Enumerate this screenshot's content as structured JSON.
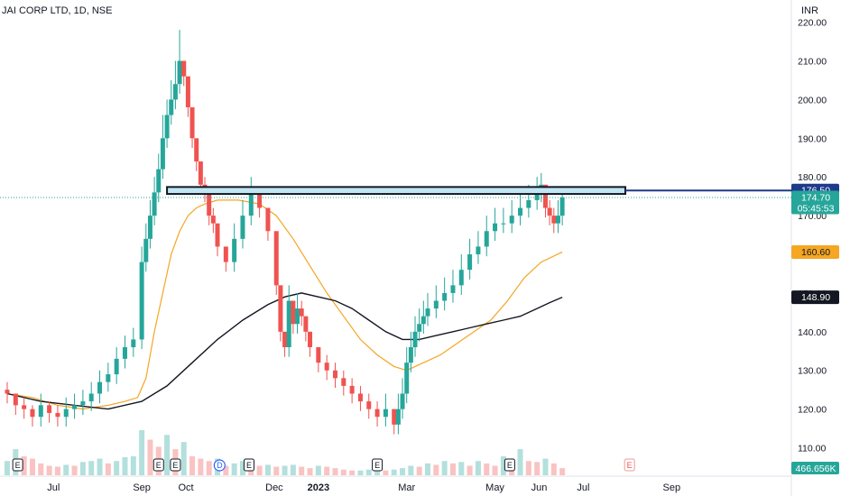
{
  "header": {
    "title": "JAI CORP LTD, 1D, NSE",
    "currency": "INR"
  },
  "chart_data": {
    "type": "candlestick",
    "symbol": "JAI CORP LTD",
    "interval": "1D",
    "exchange": "NSE",
    "ylim": [
      105,
      222
    ],
    "yticks": [
      110,
      120,
      130,
      140,
      150,
      160,
      170,
      180,
      190,
      200,
      210,
      220
    ],
    "ytick_labels": [
      "110.00",
      "120.00",
      "130.00",
      "140.00",
      "150.00",
      "160.00",
      "170.00",
      "180.00",
      "190.00",
      "200.00",
      "210.00",
      "220.00"
    ],
    "xticks": [
      {
        "label": "Jul",
        "t": 22,
        "bold": false
      },
      {
        "label": "Sep",
        "t": 64,
        "bold": false
      },
      {
        "label": "Oct",
        "t": 85,
        "bold": false
      },
      {
        "label": "Dec",
        "t": 127,
        "bold": false
      },
      {
        "label": "2023",
        "t": 148,
        "bold": true
      },
      {
        "label": "Mar",
        "t": 190,
        "bold": false
      },
      {
        "label": "May",
        "t": 232,
        "bold": false
      },
      {
        "label": "Jun",
        "t": 253,
        "bold": false
      },
      {
        "label": "Jul",
        "t": 274,
        "bold": false
      },
      {
        "label": "Sep",
        "t": 316,
        "bold": false
      }
    ],
    "series": [
      {
        "name": "Price",
        "kind": "candle",
        "t": [
          0,
          4,
          8,
          12,
          16,
          20,
          24,
          28,
          32,
          36,
          40,
          44,
          48,
          52,
          56,
          60,
          64,
          66,
          68,
          70,
          72,
          74,
          76,
          78,
          80,
          82,
          84,
          86,
          88,
          90,
          92,
          94,
          96,
          98,
          100,
          104,
          108,
          112,
          116,
          120,
          124,
          128,
          130,
          132,
          134,
          136,
          138,
          140,
          142,
          144,
          148,
          152,
          156,
          160,
          164,
          168,
          172,
          176,
          180,
          184,
          186,
          188,
          190,
          192,
          194,
          196,
          198,
          200,
          204,
          208,
          212,
          216,
          220,
          224,
          228,
          232,
          236,
          240,
          244,
          248,
          252,
          254,
          256,
          258,
          260,
          262,
          264
        ],
        "close": [
          124,
          121,
          120,
          118,
          121,
          119,
          118,
          120,
          121,
          122,
          124,
          127,
          129,
          133,
          136,
          138,
          158,
          164,
          170,
          176,
          182,
          190,
          196,
          200,
          204,
          210,
          206,
          198,
          190,
          184,
          178,
          176,
          170,
          168,
          162,
          158,
          164,
          170,
          176,
          172,
          166,
          152,
          140,
          136,
          148,
          142,
          146,
          144,
          140,
          136,
          132,
          130,
          128,
          126,
          124,
          122,
          120,
          118,
          120,
          116,
          120,
          124,
          132,
          136,
          140,
          142,
          144,
          146,
          148,
          150,
          152,
          156,
          160,
          162,
          166,
          168,
          168,
          170,
          172,
          174,
          176,
          178,
          172,
          170,
          168,
          170,
          174.7
        ],
        "high": [
          127,
          124,
          123,
          121,
          124,
          122,
          121,
          123,
          124,
          125,
          127,
          130,
          132,
          136,
          139,
          141,
          162,
          168,
          174,
          180,
          186,
          196,
          200,
          205,
          210,
          218,
          210,
          202,
          194,
          188,
          182,
          180,
          175,
          172,
          166,
          162,
          168,
          174,
          180,
          176,
          170,
          160,
          148,
          140,
          152,
          146,
          150,
          148,
          144,
          140,
          136,
          134,
          132,
          130,
          128,
          126,
          124,
          122,
          124,
          120,
          124,
          128,
          136,
          140,
          144,
          146,
          148,
          150,
          152,
          154,
          156,
          160,
          164,
          166,
          170,
          172,
          172,
          174,
          176,
          178,
          180,
          181,
          176,
          174,
          172,
          174,
          176
        ]
      },
      {
        "name": "Moving average (short)",
        "kind": "line",
        "color": "#f5a623",
        "t": [
          0,
          12,
          24,
          36,
          48,
          56,
          62,
          66,
          70,
          74,
          78,
          82,
          86,
          90,
          94,
          100,
          110,
          120,
          128,
          136,
          144,
          152,
          160,
          168,
          176,
          184,
          190,
          198,
          206,
          214,
          222,
          230,
          238,
          246,
          254,
          264
        ],
        "y": [
          124,
          123,
          121,
          120,
          121,
          122,
          123,
          128,
          140,
          150,
          160,
          166,
          170,
          172,
          173,
          174,
          174,
          173,
          170,
          164,
          157,
          150,
          144,
          138,
          134,
          131,
          130,
          132,
          134,
          137,
          140,
          143,
          148,
          154,
          158,
          160.6
        ]
      },
      {
        "name": "Moving average (long)",
        "kind": "line",
        "color": "#131722",
        "t": [
          0,
          16,
          32,
          48,
          64,
          76,
          88,
          100,
          112,
          124,
          132,
          140,
          148,
          156,
          164,
          172,
          180,
          188,
          196,
          204,
          212,
          220,
          228,
          236,
          244,
          252,
          258,
          264
        ],
        "y": [
          124,
          122,
          121,
          120,
          122,
          126,
          132,
          138,
          143,
          147,
          149,
          150,
          149,
          148,
          146,
          143,
          140,
          138,
          138,
          139,
          140,
          141,
          142,
          143,
          144,
          146,
          147.5,
          148.9
        ]
      }
    ],
    "volume": {
      "label": "466.656K",
      "t": [
        0,
        4,
        8,
        12,
        16,
        20,
        24,
        28,
        32,
        36,
        40,
        44,
        48,
        52,
        56,
        60,
        64,
        68,
        72,
        76,
        80,
        84,
        88,
        92,
        96,
        100,
        104,
        108,
        112,
        116,
        120,
        124,
        128,
        132,
        136,
        140,
        144,
        148,
        152,
        156,
        160,
        164,
        168,
        172,
        176,
        180,
        184,
        188,
        192,
        196,
        200,
        204,
        208,
        212,
        216,
        220,
        224,
        228,
        232,
        236,
        240,
        244,
        248,
        252,
        256,
        260,
        264
      ],
      "v": [
        30,
        55,
        40,
        35,
        25,
        20,
        18,
        22,
        20,
        28,
        30,
        35,
        25,
        30,
        38,
        40,
        95,
        75,
        60,
        85,
        55,
        70,
        40,
        35,
        30,
        35,
        20,
        25,
        30,
        25,
        20,
        22,
        18,
        20,
        22,
        18,
        15,
        20,
        18,
        15,
        12,
        10,
        10,
        12,
        14,
        10,
        12,
        15,
        20,
        18,
        25,
        22,
        30,
        25,
        28,
        20,
        30,
        25,
        20,
        40,
        35,
        55,
        30,
        28,
        35,
        25,
        15
      ]
    },
    "events": [
      {
        "label": "E",
        "t": 5,
        "style": "earnings"
      },
      {
        "label": "E",
        "t": 72,
        "style": "earnings"
      },
      {
        "label": "E",
        "t": 80,
        "style": "earnings"
      },
      {
        "label": "D",
        "t": 101,
        "style": "dividend"
      },
      {
        "label": "E",
        "t": 115,
        "style": "earnings"
      },
      {
        "label": "E",
        "t": 176,
        "style": "earnings"
      },
      {
        "label": "E",
        "t": 239,
        "style": "earnings"
      },
      {
        "label": "E",
        "t": 296,
        "style": "upcoming"
      }
    ],
    "zone": {
      "low": 175.6,
      "high": 177.4,
      "t_start": 76,
      "t_end": 294
    },
    "hline": {
      "value": 176.5
    },
    "last_price_line": {
      "value": 174.7
    },
    "price_tags": [
      {
        "value": 176.5,
        "label": "176.50",
        "sublabel": "",
        "bg": "#1e3a8a",
        "fg": "#ffffff"
      },
      {
        "value": 174.7,
        "label": "174.70",
        "sublabel": "05:45:53",
        "bg": "#26a69a",
        "fg": "#ffffff"
      },
      {
        "value": 160.6,
        "label": "160.60",
        "sublabel": "",
        "bg": "#f5a623",
        "fg": "#131722"
      },
      {
        "value": 148.9,
        "label": "148.90",
        "sublabel": "",
        "bg": "#131722",
        "fg": "#ffffff"
      }
    ],
    "colors": {
      "up": "#26a69a",
      "down": "#ef5350",
      "zone_border": "#131722",
      "zone_fill": "#bfe6f2",
      "hline": "#1e3a8a"
    }
  }
}
